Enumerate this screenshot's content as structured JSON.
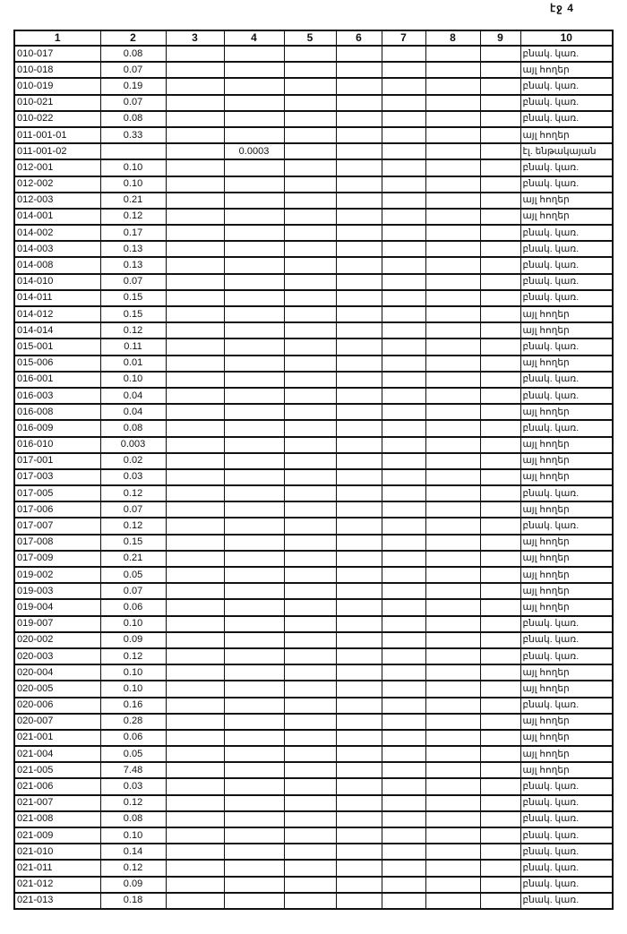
{
  "page_label": "էջ 4",
  "headers": [
    "1",
    "2",
    "3",
    "4",
    "5",
    "6",
    "7",
    "8",
    "9",
    "10"
  ],
  "rows": [
    {
      "c1": "010-017",
      "c2": "0.08",
      "c4": "",
      "c10": "բնակ. կառ."
    },
    {
      "c1": "010-018",
      "c2": "0.07",
      "c4": "",
      "c10": "այլ հողեր"
    },
    {
      "c1": "010-019",
      "c2": "0.19",
      "c4": "",
      "c10": "բնակ. կառ."
    },
    {
      "c1": "010-021",
      "c2": "0.07",
      "c4": "",
      "c10": "բնակ. կառ."
    },
    {
      "c1": "010-022",
      "c2": "0.08",
      "c4": "",
      "c10": "բնակ. կառ."
    },
    {
      "c1": "011-001-01",
      "c2": "0.33",
      "c4": "",
      "c10": "այլ հողեր"
    },
    {
      "c1": "011-001-02",
      "c2": "",
      "c4": "0.0003",
      "c10": "էլ. ենթակայան"
    },
    {
      "c1": "012-001",
      "c2": "0.10",
      "c4": "",
      "c10": "բնակ. կառ."
    },
    {
      "c1": "012-002",
      "c2": "0.10",
      "c4": "",
      "c10": "բնակ. կառ."
    },
    {
      "c1": "012-003",
      "c2": "0.21",
      "c4": "",
      "c10": "այլ հողեր"
    },
    {
      "c1": "014-001",
      "c2": "0.12",
      "c4": "",
      "c10": "այլ հողեր"
    },
    {
      "c1": "014-002",
      "c2": "0.17",
      "c4": "",
      "c10": "բնակ. կառ."
    },
    {
      "c1": "014-003",
      "c2": "0.13",
      "c4": "",
      "c10": "բնակ. կառ."
    },
    {
      "c1": "014-008",
      "c2": "0.13",
      "c4": "",
      "c10": "բնակ. կառ."
    },
    {
      "c1": "014-010",
      "c2": "0.07",
      "c4": "",
      "c10": "բնակ. կառ."
    },
    {
      "c1": "014-011",
      "c2": "0.15",
      "c4": "",
      "c10": "բնակ. կառ."
    },
    {
      "c1": "014-012",
      "c2": "0.15",
      "c4": "",
      "c10": "այլ հողեր"
    },
    {
      "c1": "014-014",
      "c2": "0.12",
      "c4": "",
      "c10": "այլ հողեր"
    },
    {
      "c1": "015-001",
      "c2": "0.11",
      "c4": "",
      "c10": "բնակ. կառ."
    },
    {
      "c1": "015-006",
      "c2": "0.01",
      "c4": "",
      "c10": "այլ հողեր"
    },
    {
      "c1": "016-001",
      "c2": "0.10",
      "c4": "",
      "c10": "բնակ. կառ."
    },
    {
      "c1": "016-003",
      "c2": "0.04",
      "c4": "",
      "c10": "բնակ. կառ."
    },
    {
      "c1": "016-008",
      "c2": "0.04",
      "c4": "",
      "c10": "այլ հողեր"
    },
    {
      "c1": "016-009",
      "c2": "0.08",
      "c4": "",
      "c10": "բնակ. կառ."
    },
    {
      "c1": "016-010",
      "c2": "0.003",
      "c4": "",
      "c10": "այլ հողեր"
    },
    {
      "c1": "017-001",
      "c2": "0.02",
      "c4": "",
      "c10": "այլ հողեր"
    },
    {
      "c1": "017-003",
      "c2": "0.03",
      "c4": "",
      "c10": "այլ հողեր"
    },
    {
      "c1": "017-005",
      "c2": "0.12",
      "c4": "",
      "c10": "բնակ. կառ."
    },
    {
      "c1": "017-006",
      "c2": "0.07",
      "c4": "",
      "c10": "այլ հողեր"
    },
    {
      "c1": "017-007",
      "c2": "0.12",
      "c4": "",
      "c10": "բնակ. կառ."
    },
    {
      "c1": "017-008",
      "c2": "0.15",
      "c4": "",
      "c10": "այլ հողեր"
    },
    {
      "c1": "017-009",
      "c2": "0.21",
      "c4": "",
      "c10": "այլ հողեր"
    },
    {
      "c1": "019-002",
      "c2": "0.05",
      "c4": "",
      "c10": "այլ հողեր"
    },
    {
      "c1": "019-003",
      "c2": "0.07",
      "c4": "",
      "c10": "այլ հողեր"
    },
    {
      "c1": "019-004",
      "c2": "0.06",
      "c4": "",
      "c10": "այլ հողեր"
    },
    {
      "c1": "019-007",
      "c2": "0.10",
      "c4": "",
      "c10": "բնակ. կառ."
    },
    {
      "c1": "020-002",
      "c2": "0.09",
      "c4": "",
      "c10": "բնակ. կառ."
    },
    {
      "c1": "020-003",
      "c2": "0.12",
      "c4": "",
      "c10": "բնակ. կառ."
    },
    {
      "c1": "020-004",
      "c2": "0.10",
      "c4": "",
      "c10": "այլ հողեր"
    },
    {
      "c1": "020-005",
      "c2": "0.10",
      "c4": "",
      "c10": "այլ հողեր"
    },
    {
      "c1": "020-006",
      "c2": "0.16",
      "c4": "",
      "c10": "բնակ. կառ."
    },
    {
      "c1": "020-007",
      "c2": "0.28",
      "c4": "",
      "c10": "այլ հողեր"
    },
    {
      "c1": "021-001",
      "c2": "0.06",
      "c4": "",
      "c10": "այլ հողեր"
    },
    {
      "c1": "021-004",
      "c2": "0.05",
      "c4": "",
      "c10": "այլ հողեր"
    },
    {
      "c1": "021-005",
      "c2": "7.48",
      "c4": "",
      "c10": "այլ հողեր"
    },
    {
      "c1": "021-006",
      "c2": "0.03",
      "c4": "",
      "c10": "բնակ. կառ."
    },
    {
      "c1": "021-007",
      "c2": "0.12",
      "c4": "",
      "c10": "բնակ. կառ."
    },
    {
      "c1": "021-008",
      "c2": "0.08",
      "c4": "",
      "c10": "բնակ. կառ."
    },
    {
      "c1": "021-009",
      "c2": "0.10",
      "c4": "",
      "c10": "բնակ. կառ."
    },
    {
      "c1": "021-010",
      "c2": "0.14",
      "c4": "",
      "c10": "բնակ. կառ."
    },
    {
      "c1": "021-011",
      "c2": "0.12",
      "c4": "",
      "c10": "բնակ. կառ."
    },
    {
      "c1": "021-012",
      "c2": "0.09",
      "c4": "",
      "c10": "բնակ. կառ."
    },
    {
      "c1": "021-013",
      "c2": "0.18",
      "c4": "",
      "c10": "բնակ. կառ."
    }
  ]
}
